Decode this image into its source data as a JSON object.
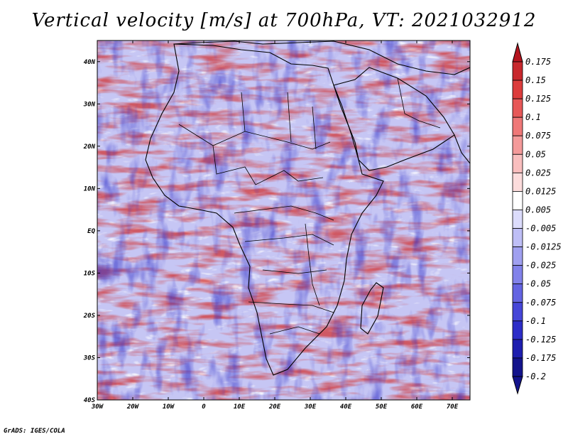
{
  "chart_data": {
    "type": "heatmap",
    "title": "Vertical velocity [m/s] at 700hPa, VT: 2021032912",
    "variable": "Vertical velocity",
    "units": "m/s",
    "level": "700hPa",
    "valid_time": "2021032912",
    "xlabel": "",
    "ylabel": "",
    "xlim": [
      -30,
      75
    ],
    "ylim": [
      -40,
      45
    ],
    "x_ticks": [
      "30W",
      "20W",
      "10W",
      "0",
      "10E",
      "20E",
      "30E",
      "40E",
      "50E",
      "60E",
      "70E"
    ],
    "y_ticks": [
      "40N",
      "30N",
      "20N",
      "10N",
      "EQ",
      "10S",
      "20S",
      "30S",
      "40S"
    ],
    "legend": {
      "position": "right",
      "levels": [
        "0.175",
        "0.15",
        "0.125",
        "0.1",
        "0.075",
        "0.05",
        "0.025",
        "0.0125",
        "0.005",
        "-0.005",
        "-0.0125",
        "-0.025",
        "-0.05",
        "-0.075",
        "-0.1",
        "-0.125",
        "-0.175",
        "-0.2"
      ],
      "colors": [
        "#b4141e",
        "#c8282d",
        "#dc3c3c",
        "#e75858",
        "#ef7878",
        "#f49a9a",
        "#f9bebe",
        "#fcdcdc",
        "#ffffff",
        "#dcdcfc",
        "#bebef6",
        "#a0a0f0",
        "#8282ea",
        "#6464e2",
        "#4646d8",
        "#2d2dc8",
        "#1e1eaf",
        "#14148c"
      ]
    }
  },
  "footer": {
    "credit": "GrADS: IGES/COLA"
  }
}
